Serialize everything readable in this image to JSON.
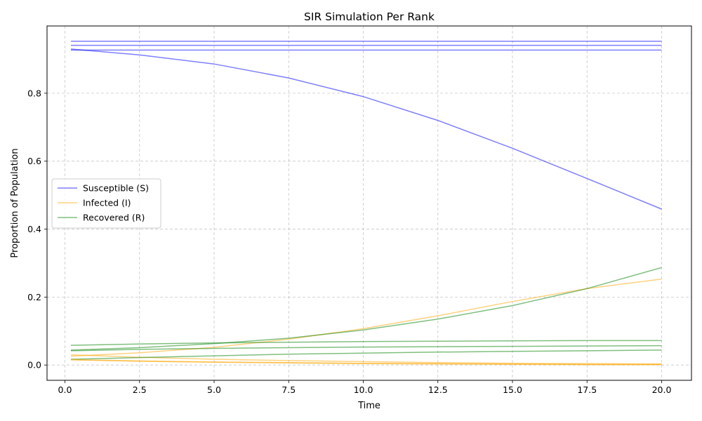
{
  "chart_data": {
    "type": "line",
    "title": "SIR Simulation Per Rank",
    "xlabel": "Time",
    "ylabel": "Proportion of Population",
    "xlim": [
      -0.6,
      21.0
    ],
    "ylim": [
      -0.045,
      0.998
    ],
    "xticks": [
      0.0,
      2.5,
      5.0,
      7.5,
      10.0,
      12.5,
      15.0,
      17.5,
      20.0
    ],
    "xtick_labels": [
      "0.0",
      "2.5",
      "5.0",
      "7.5",
      "10.0",
      "12.5",
      "15.0",
      "17.5",
      "20.0"
    ],
    "yticks": [
      0.0,
      0.2,
      0.4,
      0.6,
      0.8
    ],
    "ytick_labels": [
      "0.0",
      "0.2",
      "0.4",
      "0.6",
      "0.8"
    ],
    "grid": true,
    "legend_position": "center-left",
    "colors": {
      "S": "#0000ff",
      "I": "#ffa500",
      "R": "#008000"
    },
    "legend": [
      {
        "label": "Susceptible (S)",
        "group": "S"
      },
      {
        "label": "Infected (I)",
        "group": "I"
      },
      {
        "label": "Recovered (R)",
        "group": "R"
      }
    ],
    "x": [
      0.2,
      2.5,
      5.0,
      7.5,
      10.0,
      12.5,
      15.0,
      17.5,
      20.0
    ],
    "series": [
      {
        "group": "S",
        "values": [
          0.93,
          0.913,
          0.886,
          0.845,
          0.79,
          0.72,
          0.638,
          0.549,
          0.459
        ]
      },
      {
        "group": "I",
        "values": [
          0.026,
          0.036,
          0.052,
          0.076,
          0.107,
          0.145,
          0.187,
          0.225,
          0.253
        ]
      },
      {
        "group": "R",
        "values": [
          0.044,
          0.051,
          0.063,
          0.079,
          0.103,
          0.135,
          0.175,
          0.225,
          0.287
        ]
      },
      {
        "group": "S",
        "values": [
          0.953,
          0.953,
          0.953,
          0.953,
          0.953,
          0.953,
          0.953,
          0.953,
          0.953
        ]
      },
      {
        "group": "I",
        "values": [
          0.03,
          0.023,
          0.017,
          0.013,
          0.01,
          0.007,
          0.005,
          0.004,
          0.003
        ]
      },
      {
        "group": "R",
        "values": [
          0.017,
          0.022,
          0.027,
          0.032,
          0.035,
          0.038,
          0.04,
          0.042,
          0.044
        ]
      },
      {
        "group": "S",
        "values": [
          0.941,
          0.941,
          0.941,
          0.941,
          0.941,
          0.941,
          0.941,
          0.941,
          0.941
        ]
      },
      {
        "group": "I",
        "values": [
          0.016,
          0.012,
          0.009,
          0.007,
          0.005,
          0.004,
          0.003,
          0.002,
          0.002
        ]
      },
      {
        "group": "R",
        "values": [
          0.042,
          0.046,
          0.049,
          0.051,
          0.053,
          0.054,
          0.055,
          0.056,
          0.057
        ]
      },
      {
        "group": "S",
        "values": [
          0.927,
          0.927,
          0.927,
          0.927,
          0.927,
          0.927,
          0.927,
          0.927,
          0.927
        ]
      },
      {
        "group": "I",
        "values": [
          0.015,
          0.011,
          0.008,
          0.006,
          0.004,
          0.003,
          0.002,
          0.001,
          0.001
        ]
      },
      {
        "group": "R",
        "values": [
          0.058,
          0.062,
          0.065,
          0.067,
          0.069,
          0.07,
          0.071,
          0.072,
          0.072
        ]
      }
    ]
  }
}
